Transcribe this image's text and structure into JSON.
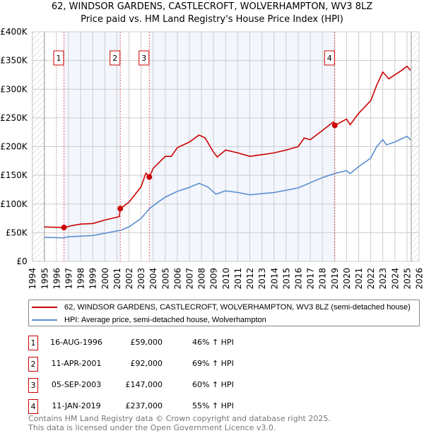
{
  "chart_data": {
    "type": "line",
    "title": "62, WINDSOR GARDENS, CASTLECROFT, WOLVERHAMPTON, WV3 8LZ",
    "subtitle": "Price paid vs. HM Land Registry's House Price Index (HPI)",
    "xlim": [
      1994,
      2026
    ],
    "ylim": [
      0,
      400000
    ],
    "x_ticks": [
      "1994",
      "1995",
      "1996",
      "1997",
      "1998",
      "1999",
      "2000",
      "2001",
      "2002",
      "2003",
      "2004",
      "2005",
      "2006",
      "2007",
      "2008",
      "2009",
      "2010",
      "2011",
      "2012",
      "2013",
      "2014",
      "2015",
      "2016",
      "2017",
      "2018",
      "2019",
      "2020",
      "2021",
      "2022",
      "2023",
      "2024",
      "2025",
      "2026"
    ],
    "y_ticks": [
      {
        "v": 0,
        "label": "£0"
      },
      {
        "v": 50000,
        "label": "£50K"
      },
      {
        "v": 100000,
        "label": "£100K"
      },
      {
        "v": 150000,
        "label": "£150K"
      },
      {
        "v": 200000,
        "label": "£200K"
      },
      {
        "v": 250000,
        "label": "£250K"
      },
      {
        "v": 300000,
        "label": "£300K"
      },
      {
        "v": 350000,
        "label": "£350K"
      },
      {
        "v": 400000,
        "label": "£400K"
      }
    ],
    "grid": true,
    "legend_placement": "below",
    "series": [
      {
        "name": "62, WINDSOR GARDENS, CASTLECROFT, WOLVERHAMPTON, WV3 8LZ (semi-detached house)",
        "color": "#cc0000",
        "x": [
          1995,
          1996.62,
          1997.2,
          1998,
          1999,
          2000,
          2001.2,
          2001.28,
          2002,
          2003,
          2003.4,
          2003.68,
          2004,
          2005,
          2005.5,
          2006,
          2007,
          2007.8,
          2008.3,
          2009,
          2009.3,
          2010,
          2011,
          2012,
          2013,
          2014,
          2015,
          2016,
          2016.5,
          2017,
          2018,
          2018.9,
          2019.03,
          2020,
          2020.3,
          2021,
          2022,
          2022.5,
          2023,
          2023.5,
          2024,
          2024.5,
          2025,
          2025.3
        ],
        "y": [
          60000,
          59000,
          62000,
          65000,
          66000,
          72000,
          78000,
          92000,
          103000,
          130000,
          154000,
          147000,
          162000,
          183000,
          183000,
          198000,
          208000,
          220000,
          215000,
          190000,
          182000,
          194000,
          189000,
          183000,
          186000,
          189000,
          194000,
          200000,
          215000,
          212000,
          228000,
          243000,
          237000,
          248000,
          238000,
          258000,
          280000,
          307000,
          330000,
          318000,
          325000,
          332000,
          340000,
          333000
        ]
      },
      {
        "name": "HPI: Average price, semi-detached house, Wolverhampton",
        "color": "#5b8fd0",
        "x": [
          1995,
          1996.6,
          1997,
          1998,
          1999,
          2000,
          2001,
          2001.3,
          2002,
          2003,
          2003.7,
          2004,
          2005,
          2006,
          2007,
          2007.8,
          2008.5,
          2009.2,
          2010,
          2011,
          2012,
          2013,
          2014,
          2015,
          2016,
          2017,
          2018,
          2019,
          2020,
          2020.3,
          2021,
          2022,
          2022.5,
          2023,
          2023.3,
          2024,
          2024.5,
          2025,
          2025.3
        ],
        "y": [
          42000,
          41000,
          43000,
          44000,
          45000,
          49000,
          53000,
          54000,
          60000,
          75000,
          92000,
          97000,
          112000,
          122000,
          129000,
          136000,
          130000,
          117000,
          123000,
          120000,
          116000,
          118000,
          120000,
          124000,
          128000,
          137000,
          146000,
          153000,
          158000,
          153000,
          165000,
          180000,
          200000,
          212000,
          203000,
          208000,
          213000,
          218000,
          212000
        ]
      }
    ],
    "sales": [
      {
        "n": "1",
        "x": 1996.62,
        "y": 59000,
        "date": "16-AUG-1996",
        "price": "£59,000",
        "hpi": "46% ↑ HPI"
      },
      {
        "n": "2",
        "x": 2001.28,
        "y": 92000,
        "date": "11-APR-2001",
        "price": "£92,000",
        "hpi": "69% ↑ HPI"
      },
      {
        "n": "3",
        "x": 2003.68,
        "y": 147000,
        "date": "05-SEP-2003",
        "price": "£147,000",
        "hpi": "60% ↑ HPI"
      },
      {
        "n": "4",
        "x": 2019.03,
        "y": 237000,
        "date": "11-JAN-2019",
        "price": "£237,000",
        "hpi": "55% ↑ HPI"
      }
    ]
  },
  "footer": {
    "line1": "Contains HM Land Registry data © Crown copyright and database right 2025.",
    "line2": "This data is licensed under the Open Government Licence v3.0."
  }
}
